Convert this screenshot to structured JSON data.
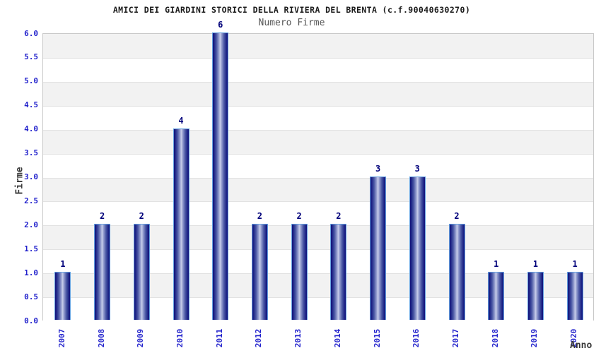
{
  "chart_data": {
    "type": "bar",
    "title": "AMICI DEI GIARDINI STORICI DELLA RIVIERA DEL BRENTA (c.f.90040630270)",
    "subtitle": "Numero Firme",
    "xlabel": "Anno",
    "ylabel": "Firme",
    "categories": [
      "2007",
      "2008",
      "2009",
      "2010",
      "2011",
      "2012",
      "2013",
      "2014",
      "2015",
      "2016",
      "2017",
      "2018",
      "2019",
      "2020"
    ],
    "values": [
      1,
      2,
      2,
      4,
      6,
      2,
      2,
      2,
      3,
      3,
      2,
      1,
      1,
      1
    ],
    "ylim": [
      0,
      6
    ],
    "ytick_step": 0.5,
    "legend": "none",
    "grid": "alternating-horizontal-bands",
    "colors": {
      "tick_label": "#2222cc",
      "value_label": "#00007a",
      "bar_edge": "#12127a",
      "bar_center": "#c9cfeb",
      "bar_outline": "#64a0e0",
      "band_gray": "#f2f2f2",
      "band_white": "#ffffff",
      "plot_border": "#c9c9c9",
      "gridline": "#e2e2e2",
      "title_color": "#1a1a1a",
      "subtitle_color": "#555555",
      "axis_title_color": "#3a3a3a"
    }
  }
}
